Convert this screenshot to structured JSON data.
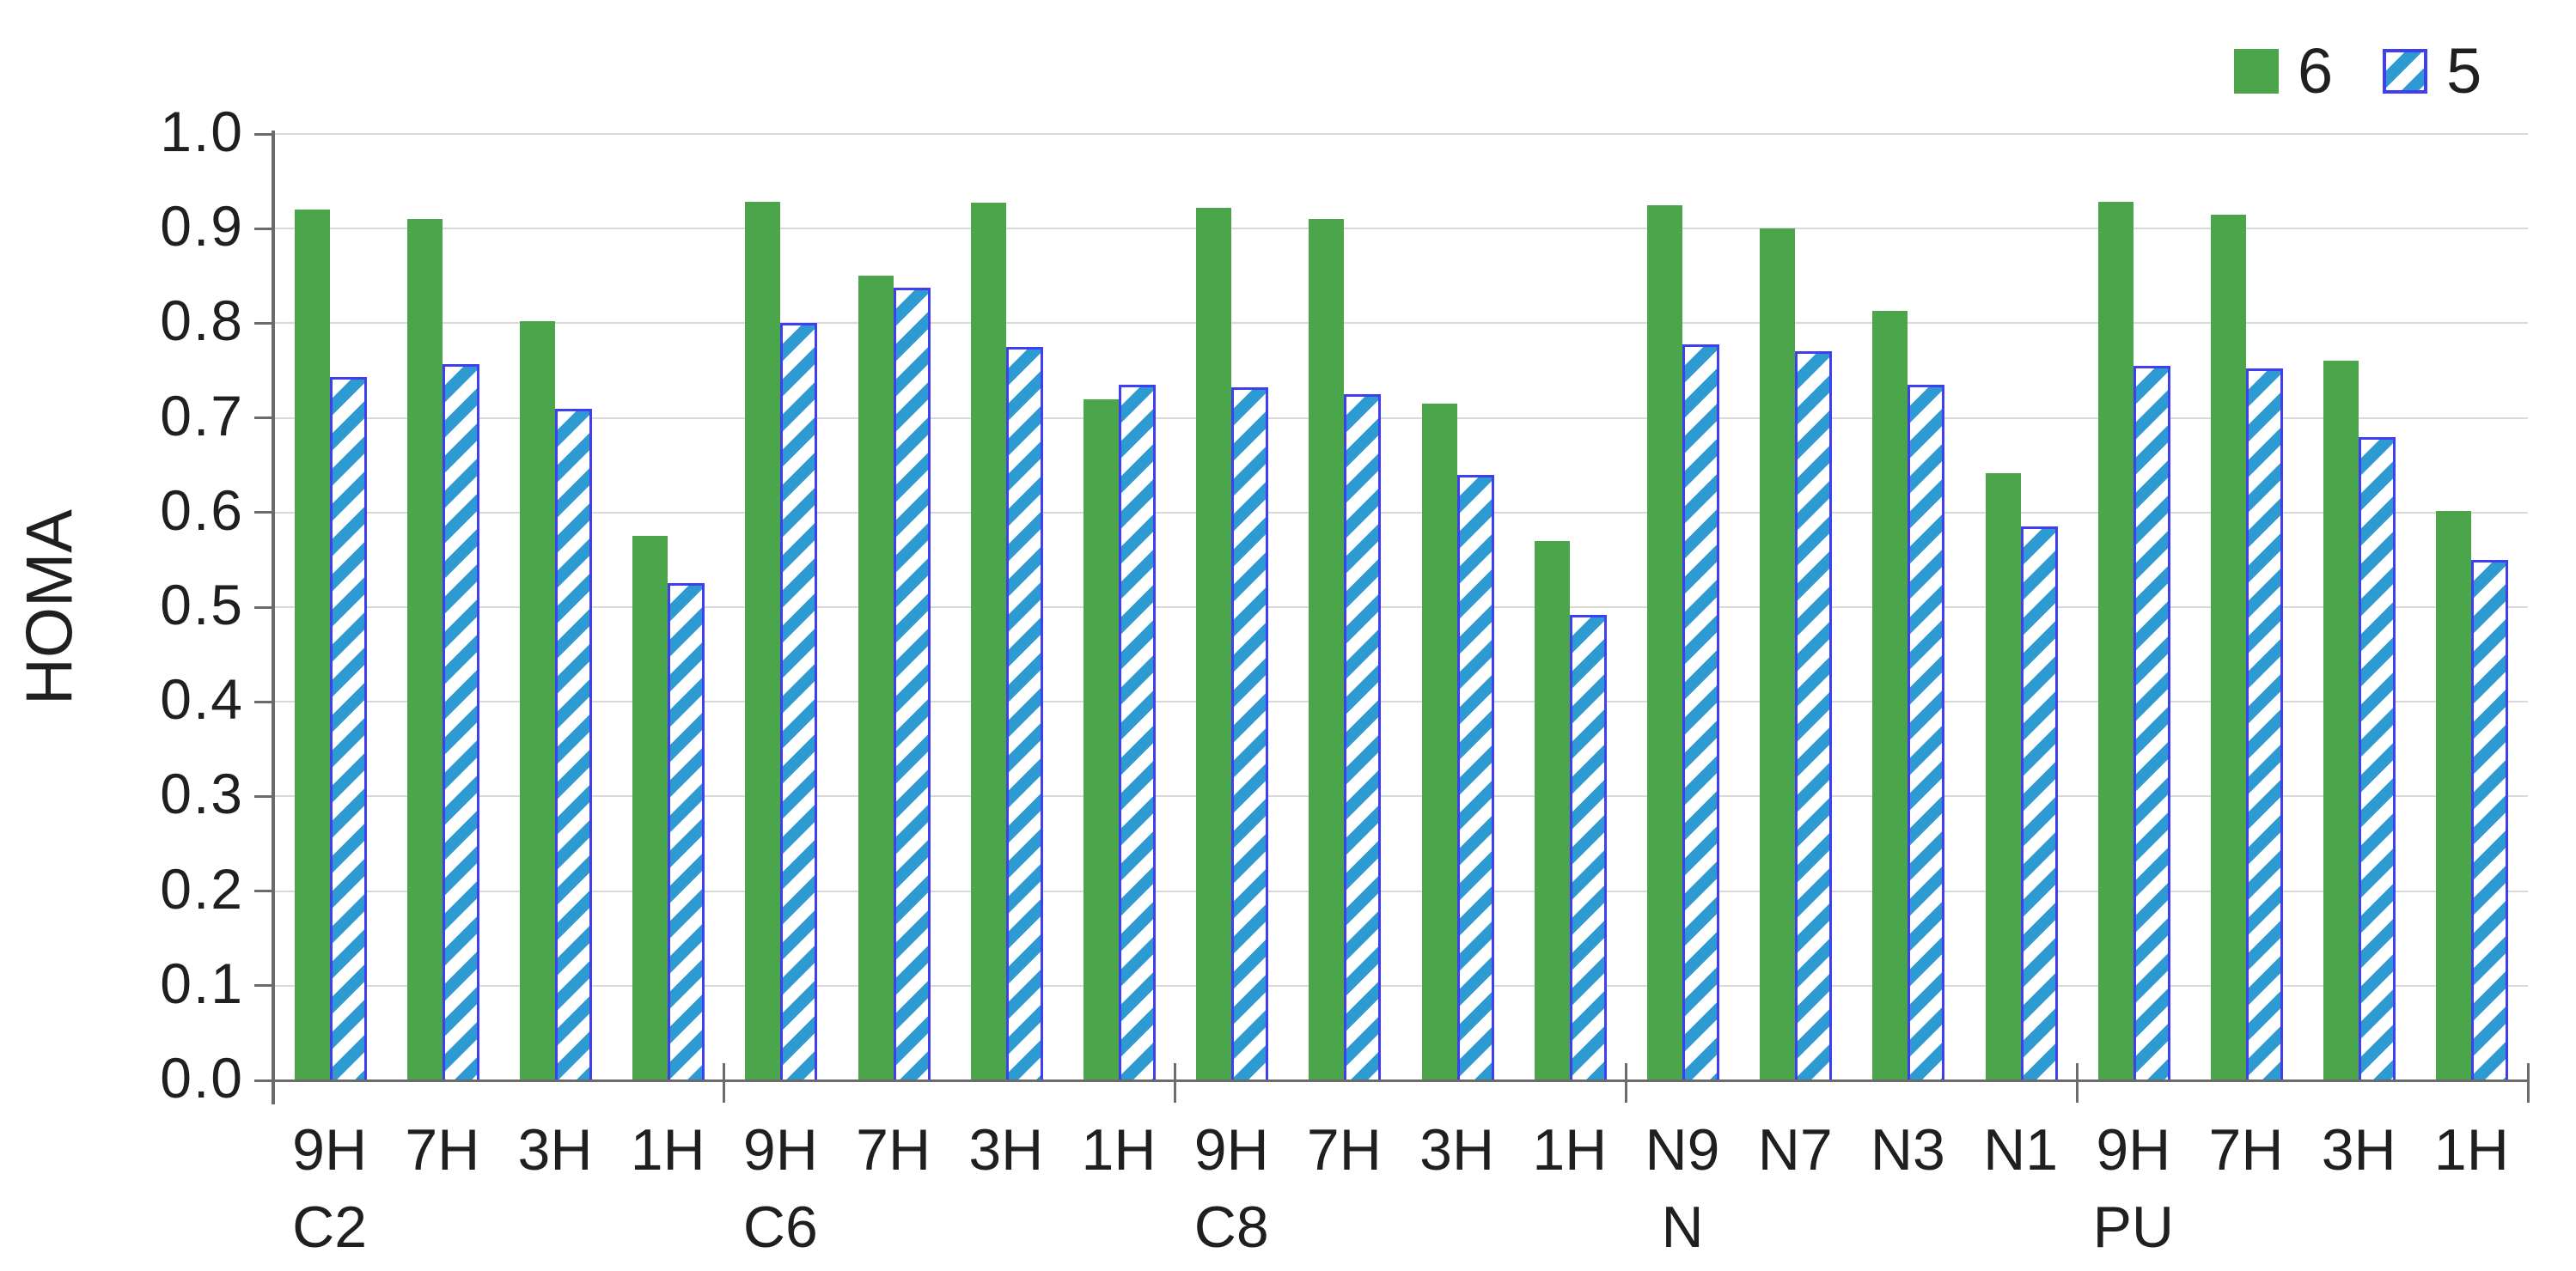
{
  "chart_data": {
    "type": "bar",
    "title": "",
    "ylabel": "HOMA",
    "xlabel": "",
    "ylim": [
      0.0,
      1.0
    ],
    "ytick_step": 0.1,
    "yticks": [
      "0.0",
      "0.1",
      "0.2",
      "0.3",
      "0.4",
      "0.5",
      "0.6",
      "0.7",
      "0.8",
      "0.9",
      "1.0"
    ],
    "grid": true,
    "legend_position": "top-right",
    "groups": [
      {
        "label": "C2",
        "categories": [
          "9H",
          "7H",
          "3H",
          "1H"
        ]
      },
      {
        "label": "C6",
        "categories": [
          "9H",
          "7H",
          "3H",
          "1H"
        ]
      },
      {
        "label": "C8",
        "categories": [
          "9H",
          "7H",
          "3H",
          "1H"
        ]
      },
      {
        "label": "N",
        "categories": [
          "N9",
          "N7",
          "N3",
          "N1"
        ]
      },
      {
        "label": "PU",
        "categories": [
          "9H",
          "7H",
          "3H",
          "1H"
        ]
      }
    ],
    "series": [
      {
        "name": "6",
        "style": "solid",
        "values": [
          0.92,
          0.91,
          0.802,
          0.575,
          0.928,
          0.85,
          0.927,
          0.72,
          0.922,
          0.91,
          0.715,
          0.57,
          0.925,
          0.9,
          0.813,
          0.642,
          0.928,
          0.915,
          0.76,
          0.602
        ]
      },
      {
        "name": "5",
        "style": "hatch",
        "values": [
          0.743,
          0.757,
          0.71,
          0.525,
          0.8,
          0.838,
          0.775,
          0.735,
          0.732,
          0.725,
          0.64,
          0.492,
          0.778,
          0.77,
          0.735,
          0.585,
          0.755,
          0.752,
          0.68,
          0.55
        ]
      }
    ],
    "colors": {
      "series6_fill": "#4BA64B",
      "series5_hatch": "#2E9AD2",
      "series5_border": "#3F3FEF",
      "gridline": "#D9D9D9",
      "axis": "#6B6B6B",
      "text": "#1F1F1F"
    }
  }
}
